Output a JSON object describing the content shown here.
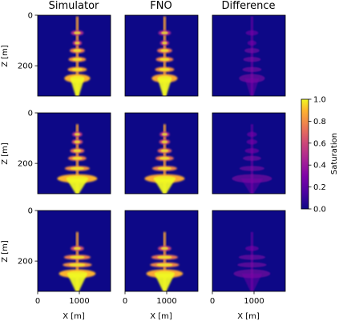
{
  "chart_data": {
    "type": "heatmap",
    "columns": [
      "Simulator",
      "FNO",
      "Difference"
    ],
    "rows": 3,
    "xlabel": "X [m]",
    "ylabel": "Z [m]",
    "x_ticks": [
      0,
      1000
    ],
    "y_ticks": [
      0,
      200
    ],
    "xlim": [
      0,
      1750
    ],
    "ylim": [
      320,
      0
    ],
    "colorbar": {
      "label": "Saturation",
      "ticks": [
        "1.0",
        "0.8",
        "0.6",
        "0.4",
        "0.2",
        "0.0"
      ],
      "range": [
        0.0,
        1.0
      ],
      "colormap": "plasma"
    },
    "plumes": [
      {
        "center_x": 950,
        "top_z": 5,
        "layers": [
          {
            "z": 70,
            "half_width": 150,
            "sat": 0.55
          },
          {
            "z": 110,
            "half_width": 110,
            "sat": 0.6
          },
          {
            "z": 140,
            "half_width": 180,
            "sat": 0.85
          },
          {
            "z": 175,
            "half_width": 210,
            "sat": 0.9
          },
          {
            "z": 215,
            "half_width": 230,
            "sat": 0.95
          },
          {
            "z": 250,
            "half_width": 310,
            "sat": 1.0
          }
        ]
      },
      {
        "center_x": 950,
        "top_z": 45,
        "layers": [
          {
            "z": 85,
            "half_width": 120,
            "sat": 0.6
          },
          {
            "z": 115,
            "half_width": 130,
            "sat": 0.7
          },
          {
            "z": 150,
            "half_width": 170,
            "sat": 0.8
          },
          {
            "z": 180,
            "half_width": 220,
            "sat": 0.85
          },
          {
            "z": 220,
            "half_width": 300,
            "sat": 0.9
          },
          {
            "z": 260,
            "half_width": 480,
            "sat": 1.0
          }
        ]
      },
      {
        "center_x": 950,
        "top_z": 85,
        "layers": [
          {
            "z": 150,
            "half_width": 160,
            "sat": 0.7
          },
          {
            "z": 185,
            "half_width": 320,
            "sat": 0.85
          },
          {
            "z": 215,
            "half_width": 350,
            "sat": 0.9
          },
          {
            "z": 250,
            "half_width": 440,
            "sat": 1.0
          }
        ]
      }
    ]
  },
  "colors": {
    "background": "#0d0887",
    "difference_tint": "#7e03a8",
    "stem": "#fca636",
    "core": "#f0f921"
  }
}
